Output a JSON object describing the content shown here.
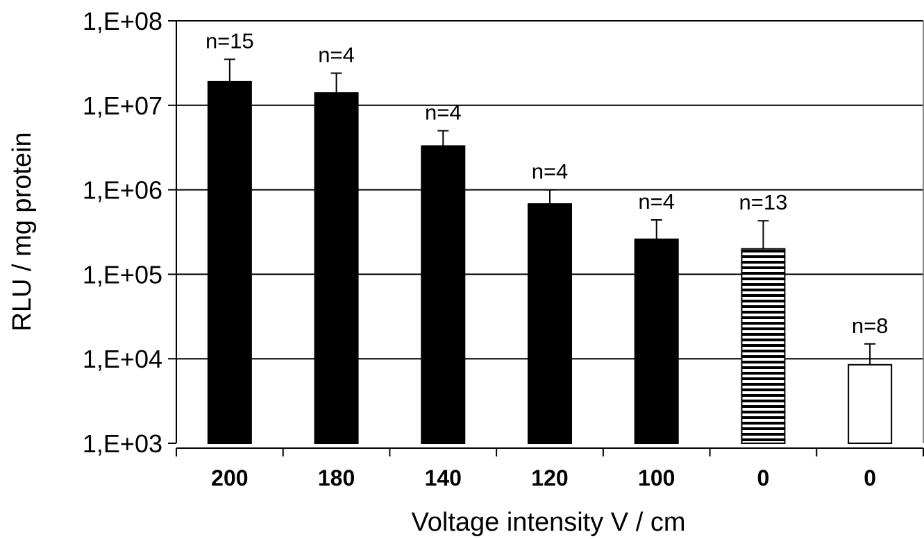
{
  "chart_data": {
    "type": "bar",
    "title": "",
    "xlabel": "Voltage intensity V / cm",
    "ylabel": "RLU / mg protein",
    "yscale": "log",
    "ylim": [
      1000,
      100000000
    ],
    "yticks": [
      1000,
      10000,
      100000,
      1000000,
      10000000,
      100000000
    ],
    "ytick_labels": [
      "1,E+03",
      "1,E+04",
      "1,E+05",
      "1,E+06",
      "1,E+07",
      "1,E+08"
    ],
    "grid": "horizontal major",
    "categories": [
      "200",
      "180",
      "140",
      "120",
      "100",
      "0",
      "0"
    ],
    "values": [
      19000000,
      14000000,
      3300000,
      680000,
      260000,
      200000,
      8500
    ],
    "error_upper": [
      35000000,
      24000000,
      5000000,
      1000000,
      440000,
      430000,
      15000
    ],
    "n_labels": [
      "n=15",
      "n=4",
      "n=4",
      "n=4",
      "n=4",
      "n=13",
      "n=8"
    ],
    "bar_fills": [
      "solid-black",
      "solid-black",
      "solid-black",
      "solid-black",
      "solid-black",
      "horizontal-stripes",
      "white"
    ],
    "colors": {
      "bar": "#000000",
      "grid": "#000000",
      "background": "#ffffff"
    }
  }
}
